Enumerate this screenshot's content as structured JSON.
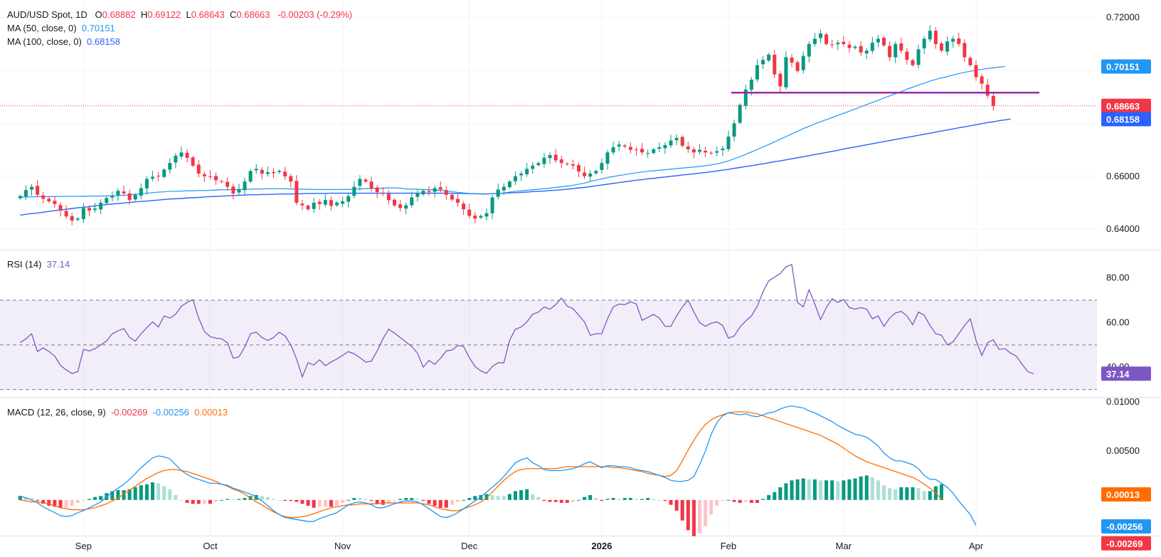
{
  "header": {
    "symbol": "AUD/USD Spot, 1D",
    "o_label": "O",
    "o_value": "0.68882",
    "h_label": "H",
    "h_value": "0.69122",
    "l_label": "L",
    "l_value": "0.68643",
    "c_label": "C",
    "c_value": "0.68663",
    "change": "-0.00203 (-0.29%)",
    "ma50_label": "MA (50, close, 0)",
    "ma50_value": "0.70151",
    "ma100_label": "MA (100, close, 0)",
    "ma100_value": "0.68158",
    "rsi_label": "RSI (14)",
    "rsi_value": "37.14",
    "macd_label": "MACD (12, 26, close, 9)",
    "macd_hist": "-0.00269",
    "macd_line": "-0.00256",
    "macd_signal": "0.00013"
  },
  "colors": {
    "up": "#089981",
    "down": "#f23645",
    "ma50": "#2196f3",
    "ma100": "#2962ff",
    "rsi": "#7e57c2",
    "macd": "#2196f3",
    "signal": "#ff6d00",
    "hist_up_strong": "#089981",
    "hist_up_weak": "#acdfd6",
    "hist_down_strong": "#f23645",
    "hist_down_weak": "#fbc5c9",
    "support": "#9c27b0"
  },
  "chart_data": {
    "type": "candlestick",
    "x_axis": {
      "months": [
        {
          "label": "Sep",
          "day": 11
        },
        {
          "label": "Oct",
          "day": 33
        },
        {
          "label": "Nov",
          "day": 56
        },
        {
          "label": "Dec",
          "day": 78
        },
        {
          "label": "2026",
          "day": 101
        },
        {
          "label": "Feb",
          "day": 123
        },
        {
          "label": "Mar",
          "day": 143
        },
        {
          "label": "Apr",
          "day": 166
        }
      ],
      "day_range": [
        -3.5,
        187
      ]
    },
    "price_axis": {
      "ylim": [
        0.6325,
        0.7245
      ],
      "ticks": [
        "0.72000",
        "0.66000",
        "0.64000"
      ]
    },
    "price_closes": [
      0.6525,
      0.6548,
      0.656,
      0.653,
      0.6515,
      0.6505,
      0.6495,
      0.647,
      0.6448,
      0.6432,
      0.644,
      0.648,
      0.647,
      0.6478,
      0.65,
      0.6518,
      0.6525,
      0.6545,
      0.6535,
      0.651,
      0.653,
      0.6555,
      0.659,
      0.6598,
      0.66,
      0.6625,
      0.665,
      0.6678,
      0.669,
      0.667,
      0.664,
      0.661,
      0.66,
      0.6598,
      0.6585,
      0.658,
      0.656,
      0.6535,
      0.655,
      0.658,
      0.662,
      0.6628,
      0.661,
      0.6615,
      0.6612,
      0.662,
      0.66,
      0.658,
      0.65,
      0.649,
      0.6475,
      0.65,
      0.6495,
      0.651,
      0.6488,
      0.65,
      0.6505,
      0.6525,
      0.656,
      0.659,
      0.658,
      0.6555,
      0.654,
      0.6535,
      0.651,
      0.649,
      0.648,
      0.649,
      0.652,
      0.6535,
      0.6545,
      0.654,
      0.6555,
      0.655,
      0.653,
      0.6512,
      0.65,
      0.6475,
      0.645,
      0.644,
      0.645,
      0.646,
      0.652,
      0.655,
      0.656,
      0.658,
      0.66,
      0.661,
      0.6628,
      0.664,
      0.665,
      0.667,
      0.668,
      0.666,
      0.665,
      0.6645,
      0.664,
      0.6618,
      0.66,
      0.661,
      0.662,
      0.665,
      0.669,
      0.671,
      0.672,
      0.6712,
      0.67,
      0.67,
      0.669,
      0.6688,
      0.6702,
      0.671,
      0.6718,
      0.6735,
      0.6745,
      0.6715,
      0.6702,
      0.669,
      0.67,
      0.669,
      0.6688,
      0.6695,
      0.6705,
      0.675,
      0.68,
      0.687,
      0.6928,
      0.6965,
      0.702,
      0.704,
      0.706,
      0.6985,
      0.694,
      0.705,
      0.703,
      0.6998,
      0.7055,
      0.71,
      0.712,
      0.714,
      0.71,
      0.7098,
      0.7105,
      0.71,
      0.7085,
      0.709,
      0.7068,
      0.7075,
      0.7105,
      0.712,
      0.7095,
      0.705,
      0.71,
      0.7075,
      0.704,
      0.702,
      0.708,
      0.712,
      0.715,
      0.71,
      0.7075,
      0.711,
      0.712,
      0.71,
      0.705,
      0.702,
      0.6975,
      0.695,
      0.6905,
      0.6866
    ],
    "ma50": [
      0.6521,
      0.6522,
      0.6522,
      0.6523,
      0.6523,
      0.6523,
      0.6523,
      0.6524,
      0.6524,
      0.6524,
      0.6524,
      0.6524,
      0.6525,
      0.6525,
      0.6525,
      0.6526,
      0.6526,
      0.6527,
      0.6528,
      0.653,
      0.6532,
      0.6534,
      0.6536,
      0.6538,
      0.654,
      0.6541,
      0.6543,
      0.6543,
      0.6544,
      0.6545,
      0.6545,
      0.6546,
      0.6546,
      0.6547,
      0.6548,
      0.6549,
      0.6549,
      0.655,
      0.655,
      0.6551,
      0.6551,
      0.6552,
      0.6552,
      0.6553,
      0.6553,
      0.6553,
      0.6553,
      0.6552,
      0.6552,
      0.6551,
      0.6551,
      0.655,
      0.655,
      0.655,
      0.655,
      0.655,
      0.655,
      0.655,
      0.6551,
      0.6552,
      0.6553,
      0.6554,
      0.6554,
      0.6555,
      0.6556,
      0.6556,
      0.6555,
      0.6552,
      0.6551,
      0.6551,
      0.655,
      0.6549,
      0.6548,
      0.6547,
      0.6545,
      0.6542,
      0.6539,
      0.6537,
      0.6535,
      0.6534,
      0.6534,
      0.6534,
      0.6534,
      0.6535,
      0.6537,
      0.654,
      0.6543,
      0.6545,
      0.6547,
      0.6549,
      0.6551,
      0.6553,
      0.6555,
      0.6558,
      0.656,
      0.6563,
      0.6566,
      0.657,
      0.6574,
      0.658,
      0.6585,
      0.659,
      0.6595,
      0.6599,
      0.6603,
      0.6606,
      0.661,
      0.6613,
      0.6616,
      0.6619,
      0.6621,
      0.6623,
      0.6625,
      0.6627,
      0.6629,
      0.6631,
      0.6633,
      0.6635,
      0.6637,
      0.664,
      0.6643,
      0.6647,
      0.6652,
      0.6658,
      0.6666,
      0.6674,
      0.6683,
      0.6692,
      0.6701,
      0.6711,
      0.672,
      0.673,
      0.674,
      0.675,
      0.676,
      0.677,
      0.678,
      0.6789,
      0.6798,
      0.6806,
      0.6814,
      0.6822,
      0.683,
      0.6838,
      0.6846,
      0.6854,
      0.6863,
      0.6871,
      0.6879,
      0.6887,
      0.6896,
      0.6904,
      0.6912,
      0.692,
      0.6929,
      0.6937,
      0.6945,
      0.6952,
      0.696,
      0.6966,
      0.6972,
      0.6977,
      0.6983,
      0.6988,
      0.6993,
      0.6997,
      0.7001,
      0.7004,
      0.7008,
      0.701,
      0.7013,
      0.7015
    ],
    "ma100": [
      0.6453,
      0.6456,
      0.6459,
      0.6461,
      0.6464,
      0.6467,
      0.647,
      0.6472,
      0.6475,
      0.6478,
      0.6481,
      0.6483,
      0.6485,
      0.6488,
      0.6491,
      0.6493,
      0.6495,
      0.6497,
      0.6499,
      0.6501,
      0.6503,
      0.6505,
      0.6506,
      0.6508,
      0.651,
      0.6512,
      0.6514,
      0.6515,
      0.6516,
      0.6518,
      0.6519,
      0.652,
      0.6522,
      0.6523,
      0.6524,
      0.6525,
      0.6526,
      0.6527,
      0.6528,
      0.6529,
      0.653,
      0.653,
      0.6531,
      0.6531,
      0.6532,
      0.6533,
      0.6533,
      0.6533,
      0.6534,
      0.6534,
      0.6535,
      0.6535,
      0.6535,
      0.6535,
      0.6536,
      0.6536,
      0.6536,
      0.6536,
      0.6536,
      0.6536,
      0.6536,
      0.6536,
      0.6536,
      0.6536,
      0.6536,
      0.6536,
      0.6536,
      0.6536,
      0.6536,
      0.6536,
      0.6536,
      0.6536,
      0.6536,
      0.6536,
      0.6536,
      0.6536,
      0.6535,
      0.6535,
      0.6534,
      0.6534,
      0.6533,
      0.6533,
      0.6534,
      0.6535,
      0.6536,
      0.6537,
      0.6538,
      0.6539,
      0.654,
      0.6542,
      0.6543,
      0.6544,
      0.6546,
      0.6547,
      0.6549,
      0.6551,
      0.6553,
      0.6556,
      0.6558,
      0.6561,
      0.6564,
      0.6567,
      0.657,
      0.6573,
      0.6576,
      0.6579,
      0.6582,
      0.6585,
      0.6587,
      0.659,
      0.6592,
      0.6595,
      0.6597,
      0.66,
      0.6602,
      0.6605,
      0.6607,
      0.6609,
      0.6612,
      0.6614,
      0.6617,
      0.662,
      0.6623,
      0.6626,
      0.663,
      0.6633,
      0.6637,
      0.664,
      0.6644,
      0.6647,
      0.6651,
      0.6655,
      0.6658,
      0.6662,
      0.6666,
      0.667,
      0.6674,
      0.6678,
      0.6682,
      0.6686,
      0.669,
      0.6694,
      0.6698,
      0.6703,
      0.6707,
      0.6711,
      0.6715,
      0.6719,
      0.6723,
      0.6727,
      0.6731,
      0.6735,
      0.6739,
      0.6743,
      0.6747,
      0.6751,
      0.6755,
      0.6759,
      0.6763,
      0.6767,
      0.6771,
      0.6775,
      0.6779,
      0.6783,
      0.6787,
      0.6791,
      0.6795,
      0.6799,
      0.6803,
      0.6806,
      0.681,
      0.6813,
      0.6816
    ],
    "support_level": 0.6916,
    "last_price": 0.68663,
    "rsi": {
      "ylim": [
        27,
        92
      ],
      "bands": [
        70,
        50,
        30
      ],
      "ticks": [
        "80.00",
        "60.00",
        "40.00"
      ],
      "values": [
        51.0,
        52.7,
        55.0,
        47.0,
        48.7,
        47.0,
        45.0,
        40.8,
        38.8,
        37.2,
        38.0,
        48.0,
        47.3,
        48.3,
        50.0,
        51.7,
        55.0,
        56.3,
        57.3,
        53.3,
        51.7,
        55.0,
        57.7,
        60.3,
        58.0,
        63.0,
        62.0,
        63.7,
        67.3,
        69.0,
        70.3,
        62.0,
        56.0,
        53.7,
        53.0,
        52.7,
        51.0,
        44.0,
        44.7,
        49.0,
        55.0,
        55.7,
        53.3,
        52.0,
        53.3,
        55.7,
        54.0,
        50.0,
        43.7,
        35.7,
        42.0,
        41.0,
        43.3,
        40.7,
        42.3,
        43.7,
        45.3,
        47.0,
        46.0,
        44.3,
        42.3,
        42.7,
        47.3,
        52.7,
        57.0,
        55.3,
        53.3,
        51.3,
        49.3,
        46.3,
        40.0,
        43.0,
        41.3,
        44.0,
        47.3,
        47.7,
        49.7,
        49.3,
        44.3,
        40.3,
        38.3,
        37.3,
        40.3,
        42.0,
        42.0,
        52.0,
        57.0,
        58.0,
        60.3,
        63.7,
        64.7,
        67.0,
        66.0,
        68.0,
        71.0,
        67.3,
        66.3,
        63.3,
        60.3,
        54.3,
        55.0,
        55.0,
        61.7,
        67.0,
        68.3,
        68.0,
        69.3,
        68.3,
        61.0,
        62.3,
        63.7,
        62.0,
        58.3,
        58.3,
        63.0,
        67.0,
        70.0,
        64.7,
        60.0,
        58.3,
        59.7,
        60.3,
        58.7,
        53.0,
        54.0,
        58.0,
        60.7,
        63.0,
        67.3,
        73.7,
        78.7,
        80.3,
        82.0,
        85.0,
        86.0,
        69.0,
        67.0,
        74.7,
        68.3,
        61.3,
        66.7,
        70.7,
        69.0,
        70.3,
        66.7,
        66.0,
        66.7,
        66.0,
        61.7,
        63.0,
        58.3,
        62.0,
        64.3,
        65.0,
        63.0,
        59.0,
        64.7,
        63.3,
        58.7,
        55.0,
        54.3,
        50.0,
        51.3,
        55.0,
        58.7,
        61.7,
        52.0,
        45.3,
        51.0,
        52.3,
        48.0,
        48.3,
        46.3,
        45.0,
        41.3,
        38.0,
        37.1
      ]
    },
    "macd": {
      "ylim": [
        -0.00365,
        0.01038
      ],
      "ticks": [
        "0.01000",
        "0.00500"
      ],
      "macd_values": [
        0.0004,
        0.0002,
        0.0,
        -0.0003,
        -0.0007,
        -0.001,
        -0.0013,
        -0.0016,
        -0.0017,
        -0.0016,
        -0.0013,
        -0.0011,
        -0.0008,
        -0.0005,
        -0.0002,
        0.0003,
        0.0008,
        0.0012,
        0.0016,
        0.0021,
        0.0027,
        0.0033,
        0.0038,
        0.0043,
        0.0045,
        0.0044,
        0.0042,
        0.0036,
        0.003,
        0.0026,
        0.0023,
        0.0021,
        0.0019,
        0.0017,
        0.0017,
        0.0016,
        0.0015,
        0.0012,
        0.001,
        0.0008,
        0.0006,
        0.0003,
        -0.0001,
        -0.0006,
        -0.0011,
        -0.0015,
        -0.0018,
        -0.0019,
        -0.002,
        -0.0021,
        -0.0022,
        -0.0022,
        -0.0019,
        -0.0017,
        -0.0015,
        -0.0013,
        -0.0009,
        -0.0005,
        -0.0003,
        -0.0002,
        -0.0003,
        -0.0005,
        -0.0008,
        -0.0008,
        -0.0006,
        -0.0004,
        -0.0002,
        -0.0001,
        -0.0001,
        -0.0002,
        -0.0005,
        -0.0009,
        -0.0013,
        -0.0017,
        -0.0018,
        -0.0016,
        -0.0013,
        -0.0009,
        -0.0005,
        -0.0001,
        0.0003,
        0.0008,
        0.0013,
        0.0018,
        0.0024,
        0.0031,
        0.0038,
        0.0041,
        0.0043,
        0.0038,
        0.0035,
        0.0031,
        0.003,
        0.003,
        0.003,
        0.0031,
        0.0032,
        0.0034,
        0.0037,
        0.0039,
        0.0036,
        0.0033,
        0.0035,
        0.0035,
        0.0034,
        0.0034,
        0.0033,
        0.0031,
        0.003,
        0.0029,
        0.0027,
        0.0025,
        0.0023,
        0.002,
        0.0019,
        0.0019,
        0.002,
        0.0024,
        0.0036,
        0.005,
        0.0067,
        0.0079,
        0.0086,
        0.0089,
        0.0088,
        0.0087,
        0.0088,
        0.0086,
        0.0085,
        0.0087,
        0.0089,
        0.009,
        0.0093,
        0.0095,
        0.0096,
        0.0095,
        0.0094,
        0.0091,
        0.0089,
        0.0086,
        0.0083,
        0.008,
        0.0076,
        0.0073,
        0.007,
        0.0067,
        0.0066,
        0.0064,
        0.006,
        0.0055,
        0.0048,
        0.0043,
        0.004,
        0.004,
        0.0038,
        0.0036,
        0.0032,
        0.0025,
        0.0021,
        0.0021,
        0.0017,
        0.0013,
        0.0007,
        -0.0001,
        -0.0008,
        -0.0015,
        -0.0026
      ],
      "signal_values": [
        0.0,
        -0.0001,
        -0.0002,
        -0.0002,
        -0.0003,
        -0.0004,
        -0.0006,
        -0.0008,
        -0.0009,
        -0.001,
        -0.001,
        -0.001,
        -0.0009,
        -0.0008,
        -0.0006,
        -0.0004,
        -0.0001,
        0.0002,
        0.0006,
        0.001,
        0.0014,
        0.0018,
        0.0022,
        0.0025,
        0.0028,
        0.003,
        0.0031,
        0.0031,
        0.003,
        0.0029,
        0.0027,
        0.0025,
        0.0023,
        0.0021,
        0.0019,
        0.0016,
        0.0014,
        0.0011,
        0.0009,
        0.0006,
        0.0002,
        -0.0002,
        -0.0005,
        -0.0009,
        -0.0012,
        -0.0015,
        -0.0017,
        -0.0018,
        -0.0018,
        -0.0017,
        -0.0016,
        -0.0014,
        -0.0012,
        -0.001,
        -0.0008,
        -0.0007,
        -0.0006,
        -0.0005,
        -0.0005,
        -0.0004,
        -0.0004,
        -0.0004,
        -0.0004,
        -0.0003,
        -0.0003,
        -0.0003,
        -0.0003,
        -0.0003,
        -0.0003,
        -0.0003,
        -0.0004,
        -0.0005,
        -0.0007,
        -0.0009,
        -0.001,
        -0.0011,
        -0.0011,
        -0.0009,
        -0.0007,
        -0.0005,
        -0.0002,
        0.0002,
        0.0008,
        0.0014,
        0.002,
        0.0025,
        0.0029,
        0.0031,
        0.0032,
        0.0032,
        0.0032,
        0.0032,
        0.0032,
        0.0032,
        0.0033,
        0.0034,
        0.0034,
        0.0034,
        0.0034,
        0.0034,
        0.0034,
        0.0034,
        0.0034,
        0.0033,
        0.0033,
        0.0032,
        0.0031,
        0.003,
        0.0029,
        0.0027,
        0.0026,
        0.0025,
        0.0024,
        0.0025,
        0.003,
        0.004,
        0.0051,
        0.0061,
        0.007,
        0.0077,
        0.0082,
        0.0085,
        0.0087,
        0.0089,
        0.009,
        0.009,
        0.009,
        0.0089,
        0.0088,
        0.0086,
        0.0084,
        0.0082,
        0.008,
        0.0078,
        0.0076,
        0.0074,
        0.0072,
        0.007,
        0.0068,
        0.0066,
        0.0063,
        0.006,
        0.0057,
        0.0053,
        0.0049,
        0.0045,
        0.0042,
        0.0039,
        0.0037,
        0.0035,
        0.0033,
        0.0031,
        0.0029,
        0.0027,
        0.0025,
        0.0023,
        0.002,
        0.0016,
        0.0012,
        0.0007,
        0.0001
      ]
    }
  }
}
